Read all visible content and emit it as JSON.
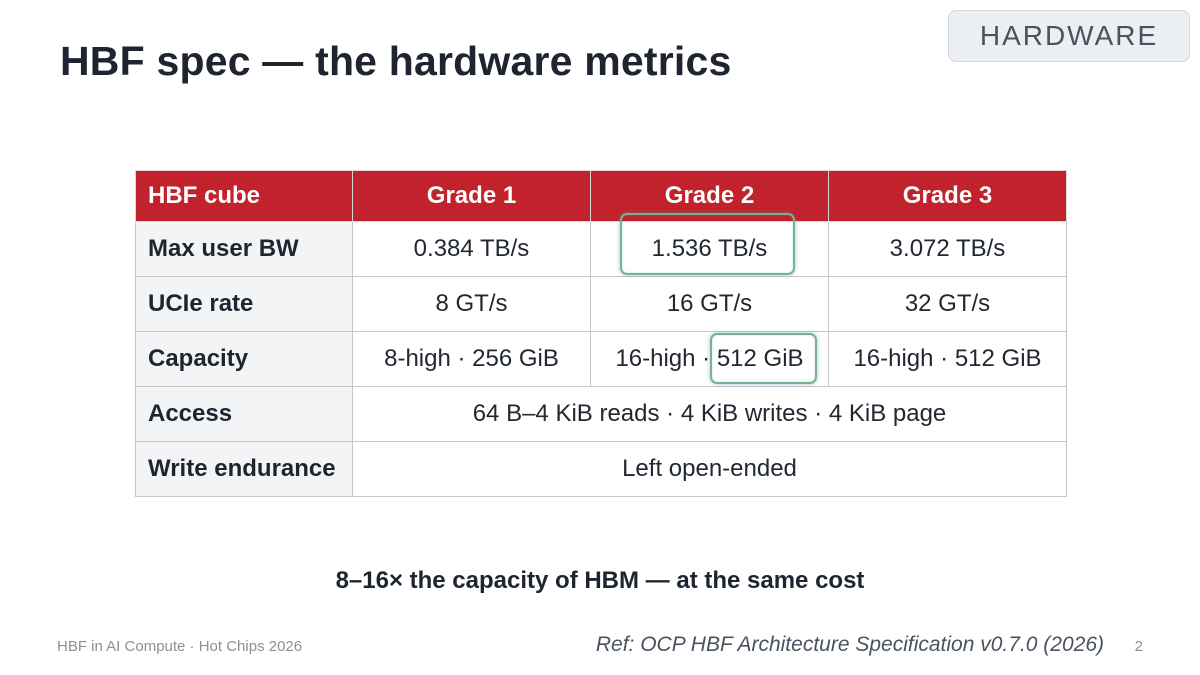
{
  "slide": {
    "title": "HBF spec — the hardware metrics",
    "badge": "HARDWARE",
    "takeaway": "8–16× the capacity of HBM — at the same cost",
    "footer": "HBF in AI Compute · Hot Chips 2026",
    "reference": "Ref: OCP HBF Architecture Specification v0.7.0 (2026)",
    "page_number": "2"
  },
  "table": {
    "columns": [
      "HBF cube",
      "Grade 1",
      "Grade 2",
      "Grade 3"
    ],
    "rows": [
      {
        "label": "Max user BW",
        "cells": [
          "0.384 TB/s",
          "1.536 TB/s",
          "3.072 TB/s"
        ]
      },
      {
        "label": "UCIe rate",
        "cells": [
          "8 GT/s",
          "16 GT/s",
          "32 GT/s"
        ]
      },
      {
        "label": "Capacity",
        "cells": [
          "8-high · 256 GiB",
          "16-high · 512 GiB",
          "16-high · 512 GiB"
        ]
      },
      {
        "label": "Access",
        "span_value": "64 B–4 KiB reads · 4 KiB writes · 4 KiB page"
      },
      {
        "label": "Write endurance",
        "span_value": "Left open-ended"
      }
    ]
  },
  "colors": {
    "header_red": "#c1222c",
    "highlight_green": "#77b38d",
    "row_label_bg": "#f3f4f6"
  }
}
